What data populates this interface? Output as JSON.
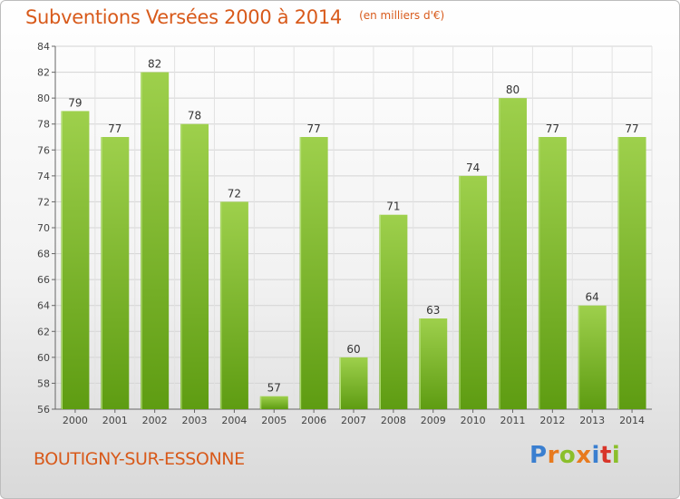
{
  "header": {
    "title": "Subventions Versées 2000 à 2014",
    "unit_note": "(en milliers d'€)"
  },
  "footer": {
    "commune": "BOUTIGNY-SUR-ESSONNE",
    "logo_text": "Proxiti",
    "logo_colors": [
      "#3a7fd0",
      "#e87a1e",
      "#8bbf2b",
      "#e87a1e",
      "#3a7fd0",
      "#d8352a",
      "#8bbf2b"
    ]
  },
  "colors": {
    "accent": "#d85a1b",
    "bar_top": "#9ed04c",
    "bar_bottom": "#5e9c12",
    "bar_edge": "#b6e07a"
  },
  "chart_data": {
    "type": "bar",
    "categories": [
      "2000",
      "2001",
      "2002",
      "2003",
      "2004",
      "2005",
      "2006",
      "2007",
      "2008",
      "2009",
      "2010",
      "2011",
      "2012",
      "2013",
      "2014"
    ],
    "values": [
      79,
      77,
      82,
      78,
      72,
      57,
      77,
      60,
      71,
      63,
      74,
      80,
      77,
      64,
      77
    ],
    "title": "Subventions Versées 2000 à 2014",
    "xlabel": "",
    "ylabel": "",
    "ylim": [
      56,
      84
    ],
    "yticks": [
      56,
      58,
      60,
      62,
      64,
      66,
      68,
      70,
      72,
      74,
      76,
      78,
      80,
      82,
      84
    ],
    "grid": true,
    "legend": "none"
  }
}
